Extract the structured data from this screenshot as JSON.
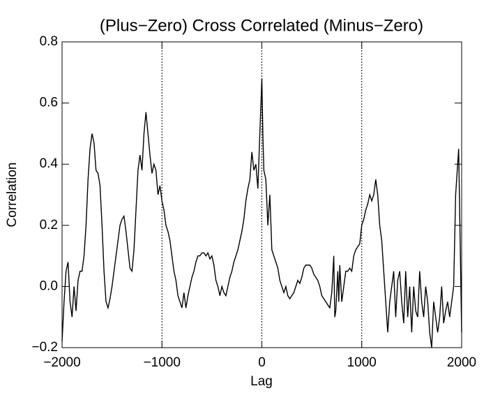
{
  "chart_data": {
    "type": "line",
    "title": "(Plus−Zero) Cross Correlated (Minus−Zero)",
    "xlabel": "Lag",
    "ylabel": "Correlation",
    "color": "#000000",
    "xlim": [
      -2000,
      2000
    ],
    "ylim": [
      -0.2,
      0.8
    ],
    "xticks": [
      {
        "value": -2000,
        "label": "−2000"
      },
      {
        "value": -1000,
        "label": "−1000"
      },
      0,
      1000,
      2000
    ],
    "yticks": [
      {
        "value": -0.2,
        "label": "−0.2"
      },
      {
        "value": 0,
        "label": "0.0"
      },
      0.2,
      0.4,
      0.6,
      0.8
    ],
    "vlines": [
      -1000,
      0,
      1000
    ],
    "x": [
      -2000,
      -1980,
      -1960,
      -1940,
      -1920,
      -1900,
      -1880,
      -1860,
      -1840,
      -1820,
      -1800,
      -1780,
      -1760,
      -1740,
      -1720,
      -1700,
      -1680,
      -1660,
      -1640,
      -1620,
      -1600,
      -1580,
      -1560,
      -1540,
      -1520,
      -1500,
      -1480,
      -1460,
      -1440,
      -1420,
      -1400,
      -1380,
      -1360,
      -1340,
      -1320,
      -1300,
      -1280,
      -1260,
      -1240,
      -1220,
      -1200,
      -1180,
      -1160,
      -1140,
      -1120,
      -1100,
      -1080,
      -1060,
      -1040,
      -1020,
      -1000,
      -980,
      -960,
      -940,
      -920,
      -900,
      -880,
      -860,
      -840,
      -820,
      -800,
      -780,
      -760,
      -740,
      -720,
      -700,
      -680,
      -660,
      -640,
      -620,
      -600,
      -580,
      -560,
      -540,
      -520,
      -500,
      -480,
      -460,
      -440,
      -420,
      -400,
      -380,
      -360,
      -340,
      -320,
      -300,
      -280,
      -260,
      -240,
      -220,
      -200,
      -180,
      -160,
      -140,
      -120,
      -100,
      -80,
      -60,
      -40,
      -20,
      0,
      10,
      20,
      40,
      60,
      80,
      100,
      120,
      140,
      160,
      180,
      200,
      220,
      240,
      260,
      280,
      300,
      320,
      340,
      360,
      380,
      400,
      420,
      440,
      460,
      480,
      500,
      520,
      540,
      560,
      580,
      600,
      620,
      640,
      660,
      680,
      700,
      720,
      730,
      740,
      760,
      770,
      780,
      800,
      820,
      840,
      860,
      880,
      900,
      920,
      940,
      960,
      980,
      1000,
      1020,
      1040,
      1060,
      1080,
      1100,
      1120,
      1140,
      1160,
      1180,
      1200,
      1220,
      1240,
      1260,
      1280,
      1300,
      1320,
      1340,
      1360,
      1380,
      1400,
      1420,
      1440,
      1460,
      1480,
      1500,
      1520,
      1540,
      1560,
      1580,
      1600,
      1620,
      1640,
      1660,
      1680,
      1700,
      1720,
      1740,
      1760,
      1780,
      1800,
      1820,
      1840,
      1860,
      1880,
      1900,
      1920,
      1940,
      1960,
      1970,
      1980,
      2000
    ],
    "values": [
      -0.18,
      -0.05,
      0.05,
      0.08,
      -0.05,
      -0.1,
      0.0,
      -0.08,
      0.02,
      0.05,
      0.05,
      0.1,
      0.2,
      0.35,
      0.45,
      0.5,
      0.47,
      0.38,
      0.37,
      0.33,
      0.2,
      0.05,
      -0.05,
      -0.07,
      -0.04,
      0.0,
      0.05,
      0.1,
      0.15,
      0.2,
      0.22,
      0.23,
      0.18,
      0.12,
      0.06,
      0.05,
      0.12,
      0.25,
      0.38,
      0.43,
      0.38,
      0.5,
      0.57,
      0.5,
      0.43,
      0.37,
      0.4,
      0.38,
      0.3,
      0.33,
      0.28,
      0.25,
      0.2,
      0.18,
      0.15,
      0.1,
      0.05,
      0.02,
      -0.03,
      -0.05,
      -0.07,
      -0.02,
      -0.07,
      -0.03,
      0.0,
      0.03,
      0.05,
      0.08,
      0.1,
      0.1,
      0.11,
      0.11,
      0.1,
      0.11,
      0.09,
      0.1,
      0.07,
      0.02,
      0.0,
      -0.03,
      0.0,
      -0.02,
      -0.03,
      0.0,
      0.03,
      0.05,
      0.08,
      0.1,
      0.12,
      0.15,
      0.18,
      0.22,
      0.28,
      0.32,
      0.35,
      0.44,
      0.38,
      0.4,
      0.32,
      0.5,
      0.68,
      0.5,
      0.38,
      0.35,
      0.2,
      0.3,
      0.12,
      0.1,
      0.08,
      0.06,
      0.02,
      0.0,
      -0.02,
      0.0,
      -0.03,
      -0.04,
      -0.03,
      -0.02,
      0.0,
      0.02,
      0.01,
      0.03,
      0.06,
      0.07,
      0.07,
      0.07,
      0.06,
      0.04,
      0.03,
      0.02,
      0.0,
      -0.03,
      -0.04,
      -0.05,
      -0.06,
      -0.07,
      -0.02,
      0.1,
      -0.1,
      -0.08,
      0.05,
      -0.05,
      0.07,
      -0.05,
      0.0,
      0.05,
      0.05,
      0.06,
      0.05,
      0.1,
      0.12,
      0.13,
      0.14,
      0.2,
      0.22,
      0.25,
      0.27,
      0.3,
      0.28,
      0.3,
      0.35,
      0.3,
      0.2,
      0.15,
      0.05,
      -0.05,
      -0.15,
      -0.05,
      0.0,
      0.05,
      -0.1,
      0.02,
      0.05,
      -0.05,
      -0.12,
      0.05,
      -0.1,
      0.0,
      -0.15,
      0.0,
      -0.08,
      -0.1,
      0.05,
      -0.05,
      -0.1,
      0.0,
      -0.05,
      -0.15,
      -0.2,
      -0.05,
      -0.1,
      -0.15,
      -0.1,
      0.0,
      -0.12,
      -0.08,
      -0.05,
      -0.1,
      -0.05,
      0.0,
      0.3,
      0.4,
      0.45,
      0.25,
      -0.15
    ]
  }
}
